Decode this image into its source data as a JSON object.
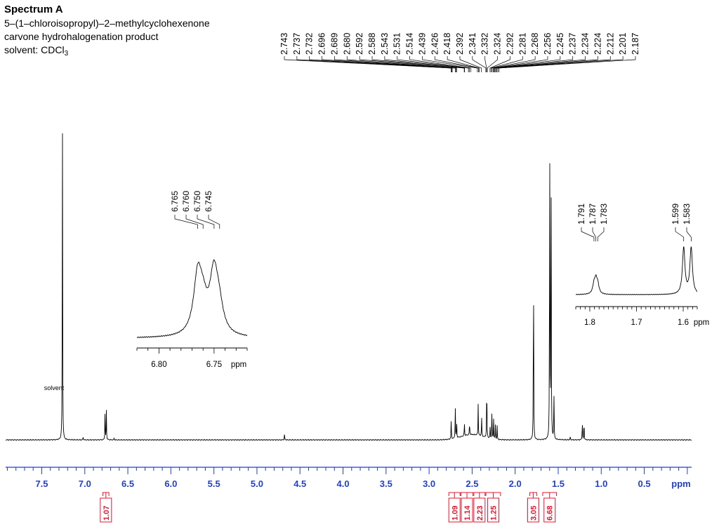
{
  "header": {
    "title": "Spectrum A",
    "compound": "5–(1–chloroisopropyl)–2–methylcyclohexenone",
    "description": "carvone hydrohalogenation product",
    "solvent_prefix": "solvent: CDCl",
    "solvent_subscript": "3"
  },
  "chart_data": {
    "type": "line",
    "xlabel": "ppm",
    "x_axis_reversed": true,
    "xlim": [
      7.92,
      -0.05
    ],
    "ticks": [
      "7.5",
      "7.0",
      "6.5",
      "6.0",
      "5.5",
      "5.0",
      "4.5",
      "4.0",
      "3.5",
      "3.0",
      "2.5",
      "2.0",
      "1.5",
      "1.0",
      "0.5"
    ],
    "solvent_label": "solvent",
    "peaks": [
      {
        "ppm": 7.26,
        "height": 0.98
      },
      {
        "ppm": 7.02,
        "height": 0.01
      },
      {
        "ppm": 6.765,
        "height": 0.08
      },
      {
        "ppm": 6.75,
        "height": 0.09
      },
      {
        "ppm": 6.66,
        "height": 0.005
      },
      {
        "ppm": 4.68,
        "height": 0.02
      },
      {
        "ppm": 2.743,
        "height": 0.06
      },
      {
        "ppm": 2.696,
        "height": 0.1
      },
      {
        "ppm": 2.68,
        "height": 0.05
      },
      {
        "ppm": 2.59,
        "height": 0.04
      },
      {
        "ppm": 2.53,
        "height": 0.04
      },
      {
        "ppm": 2.43,
        "height": 0.09
      },
      {
        "ppm": 2.39,
        "height": 0.06
      },
      {
        "ppm": 2.33,
        "height": 0.18
      },
      {
        "ppm": 2.29,
        "height": 0.04
      },
      {
        "ppm": 2.27,
        "height": 0.08
      },
      {
        "ppm": 2.25,
        "height": 0.06
      },
      {
        "ppm": 2.23,
        "height": 0.04
      },
      {
        "ppm": 2.21,
        "height": 0.04
      },
      {
        "ppm": 1.787,
        "height": 0.57
      },
      {
        "ppm": 1.599,
        "height": 0.98
      },
      {
        "ppm": 1.583,
        "height": 0.98
      },
      {
        "ppm": 1.55,
        "height": 0.15
      },
      {
        "ppm": 1.36,
        "height": 0.01
      },
      {
        "ppm": 1.22,
        "height": 0.06
      },
      {
        "ppm": 1.2,
        "height": 0.06
      }
    ],
    "peak_labels_multiplet": [
      "2.743",
      "2.737",
      "2.732",
      "2.696",
      "2.689",
      "2.680",
      "2.592",
      "2.588",
      "2.543",
      "2.531",
      "2.514",
      "2.439",
      "2.426",
      "2.418",
      "2.392",
      "2.341",
      "2.332",
      "2.324",
      "2.292",
      "2.281",
      "2.268",
      "2.256",
      "2.245",
      "2.237",
      "2.234",
      "2.224",
      "2.212",
      "2.201",
      "2.187"
    ],
    "integrals": [
      {
        "label": "1.07",
        "from": 6.79,
        "to": 6.72
      },
      {
        "label": "1.09",
        "from": 2.77,
        "to": 2.64
      },
      {
        "label": "1.14",
        "from": 2.63,
        "to": 2.49
      },
      {
        "label": "2.23",
        "from": 2.48,
        "to": 2.35
      },
      {
        "label": "1.25",
        "from": 2.34,
        "to": 2.17
      },
      {
        "label": "3.05",
        "from": 1.83,
        "to": 1.75
      },
      {
        "label": "6.68",
        "from": 1.68,
        "to": 1.52
      }
    ],
    "insets": [
      {
        "name": "inset-6.75",
        "xlim": [
          6.82,
          6.72
        ],
        "ticks": [
          "6.80",
          "6.75"
        ],
        "xlabel": "ppm",
        "peak_labels": [
          "6.765",
          "6.760",
          "6.750",
          "6.745"
        ]
      },
      {
        "name": "inset-1.7",
        "xlim": [
          1.83,
          1.57
        ],
        "ticks": [
          "1.8",
          "1.7",
          "1.6"
        ],
        "xlabel": "ppm",
        "peak_labels": [
          "1.791",
          "1.787",
          "1.783",
          "1.599",
          "1.583"
        ]
      }
    ],
    "colors": {
      "axis": "#1f3fd6",
      "integral": "#e0182f",
      "trace": "#000000"
    }
  }
}
